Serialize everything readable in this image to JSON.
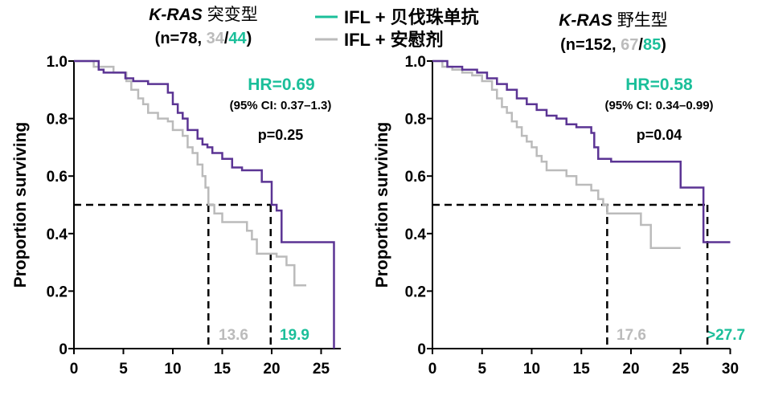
{
  "colors": {
    "treatment": "#5B3494",
    "placebo": "#BBBBBB",
    "accent": "#1BBF9A",
    "axis": "#000000"
  },
  "legend": {
    "items": [
      {
        "label": "IFL + 贝伐珠单抗",
        "color": "#1BBF9A"
      },
      {
        "label": "IFL + 安慰剂",
        "color": "#BBBBBB"
      }
    ]
  },
  "chart_data": [
    {
      "type": "line",
      "title": {
        "gene": "K-RAS",
        "label": "突变型"
      },
      "subtitle": {
        "prefix": "(n=78, ",
        "placebo_n": "34",
        "sep": "/",
        "treatment_n": "44",
        "suffix": ")"
      },
      "ylabel": "Proportion surviving",
      "xlabel": "",
      "xlim": [
        0,
        27
      ],
      "ylim": [
        0,
        1.0
      ],
      "x_ticks": [
        0,
        5,
        10,
        15,
        20,
        25
      ],
      "y_ticks": [
        0,
        0.2,
        0.4,
        0.6,
        0.8,
        1.0
      ],
      "y_tick_labels": [
        "0",
        "0.2",
        "0.4",
        "0.6",
        "0.8",
        "1.0"
      ],
      "hr": "HR=0.69",
      "ci": "(95% CI: 0.37–1.3)",
      "p": "p=0.25",
      "median_line_y": 0.5,
      "series": [
        {
          "name": "IFL + 安慰剂",
          "color_key": "placebo",
          "steps": [
            [
              0,
              1.0
            ],
            [
              2,
              0.98
            ],
            [
              4,
              0.96
            ],
            [
              5.3,
              0.93
            ],
            [
              5.8,
              0.9
            ],
            [
              6.5,
              0.87
            ],
            [
              7,
              0.85
            ],
            [
              7.5,
              0.82
            ],
            [
              8.5,
              0.8
            ],
            [
              9.5,
              0.79
            ],
            [
              10,
              0.76
            ],
            [
              11,
              0.74
            ],
            [
              11.5,
              0.7
            ],
            [
              12,
              0.68
            ],
            [
              12.5,
              0.64
            ],
            [
              13,
              0.6
            ],
            [
              13.3,
              0.56
            ],
            [
              13.6,
              0.5
            ],
            [
              14.2,
              0.47
            ],
            [
              15,
              0.44
            ],
            [
              17.5,
              0.41
            ],
            [
              18,
              0.38
            ],
            [
              18.5,
              0.33
            ],
            [
              20.5,
              0.32
            ],
            [
              21.5,
              0.29
            ],
            [
              22.3,
              0.22
            ],
            [
              23.5,
              0.22
            ]
          ],
          "median": 13.6,
          "median_label": "13.6"
        },
        {
          "name": "IFL + 贝伐珠单抗",
          "color_key": "treatment",
          "steps": [
            [
              0,
              1.0
            ],
            [
              2.5,
              0.97
            ],
            [
              3,
              0.96
            ],
            [
              5.2,
              0.94
            ],
            [
              6,
              0.93
            ],
            [
              7.5,
              0.92
            ],
            [
              9.5,
              0.89
            ],
            [
              10,
              0.85
            ],
            [
              10.5,
              0.82
            ],
            [
              11,
              0.8
            ],
            [
              11.5,
              0.76
            ],
            [
              12.5,
              0.73
            ],
            [
              13,
              0.71
            ],
            [
              13.5,
              0.7
            ],
            [
              14,
              0.68
            ],
            [
              15,
              0.66
            ],
            [
              16,
              0.63
            ],
            [
              17,
              0.62
            ],
            [
              19,
              0.58
            ],
            [
              20,
              0.5
            ],
            [
              20.5,
              0.48
            ],
            [
              21,
              0.37
            ],
            [
              26.3,
              0.37
            ],
            [
              26.3,
              0.0
            ]
          ],
          "median": 19.9,
          "median_label": "19.9"
        }
      ]
    },
    {
      "type": "line",
      "title": {
        "gene": "K-RAS",
        "label": "野生型"
      },
      "subtitle": {
        "prefix": "(n=152, ",
        "placebo_n": "67",
        "sep": "/",
        "treatment_n": "85",
        "suffix": ")"
      },
      "ylabel": "Proportion surviving",
      "xlabel": "",
      "xlim": [
        0,
        30
      ],
      "ylim": [
        0,
        1.0
      ],
      "x_ticks": [
        0,
        5,
        10,
        15,
        20,
        25,
        30
      ],
      "y_ticks": [
        0,
        0.2,
        0.4,
        0.6,
        0.8,
        1.0
      ],
      "y_tick_labels": [
        "0",
        "0.2",
        "0.4",
        "0.6",
        "0.8",
        "1.0"
      ],
      "hr": "HR=0.58",
      "ci": "(95% CI: 0.34–0.99)",
      "p": "p=0.04",
      "median_line_y": 0.5,
      "series": [
        {
          "name": "IFL + 安慰剂",
          "color_key": "placebo",
          "steps": [
            [
              0,
              1.0
            ],
            [
              1,
              0.98
            ],
            [
              2,
              0.97
            ],
            [
              3,
              0.96
            ],
            [
              4,
              0.95
            ],
            [
              5,
              0.93
            ],
            [
              6,
              0.9
            ],
            [
              6.5,
              0.87
            ],
            [
              7,
              0.84
            ],
            [
              7.5,
              0.82
            ],
            [
              8,
              0.79
            ],
            [
              8.5,
              0.77
            ],
            [
              9,
              0.74
            ],
            [
              9.5,
              0.72
            ],
            [
              10,
              0.7
            ],
            [
              10.5,
              0.67
            ],
            [
              11,
              0.65
            ],
            [
              11.5,
              0.62
            ],
            [
              13.5,
              0.6
            ],
            [
              14.5,
              0.57
            ],
            [
              16,
              0.55
            ],
            [
              16.7,
              0.52
            ],
            [
              17.2,
              0.5
            ],
            [
              17.6,
              0.47
            ],
            [
              21,
              0.43
            ],
            [
              22,
              0.35
            ],
            [
              25,
              0.35
            ]
          ],
          "median": 17.6,
          "median_label": "17.6"
        },
        {
          "name": "IFL + 贝伐珠单抗",
          "color_key": "treatment",
          "steps": [
            [
              0,
              1.0
            ],
            [
              1.5,
              0.98
            ],
            [
              3,
              0.97
            ],
            [
              4.5,
              0.96
            ],
            [
              5.5,
              0.94
            ],
            [
              6.5,
              0.92
            ],
            [
              7.5,
              0.9
            ],
            [
              8.5,
              0.87
            ],
            [
              9.5,
              0.85
            ],
            [
              10.5,
              0.83
            ],
            [
              11.5,
              0.81
            ],
            [
              12.5,
              0.8
            ],
            [
              13.5,
              0.78
            ],
            [
              14.5,
              0.77
            ],
            [
              16,
              0.75
            ],
            [
              16.3,
              0.7
            ],
            [
              16.7,
              0.66
            ],
            [
              18,
              0.65
            ],
            [
              20,
              0.65
            ],
            [
              24,
              0.65
            ],
            [
              25,
              0.56
            ],
            [
              27,
              0.56
            ],
            [
              27.3,
              0.37
            ],
            [
              30,
              0.37
            ]
          ],
          "median": 27.7,
          "median_label": ">27.7"
        }
      ]
    }
  ]
}
